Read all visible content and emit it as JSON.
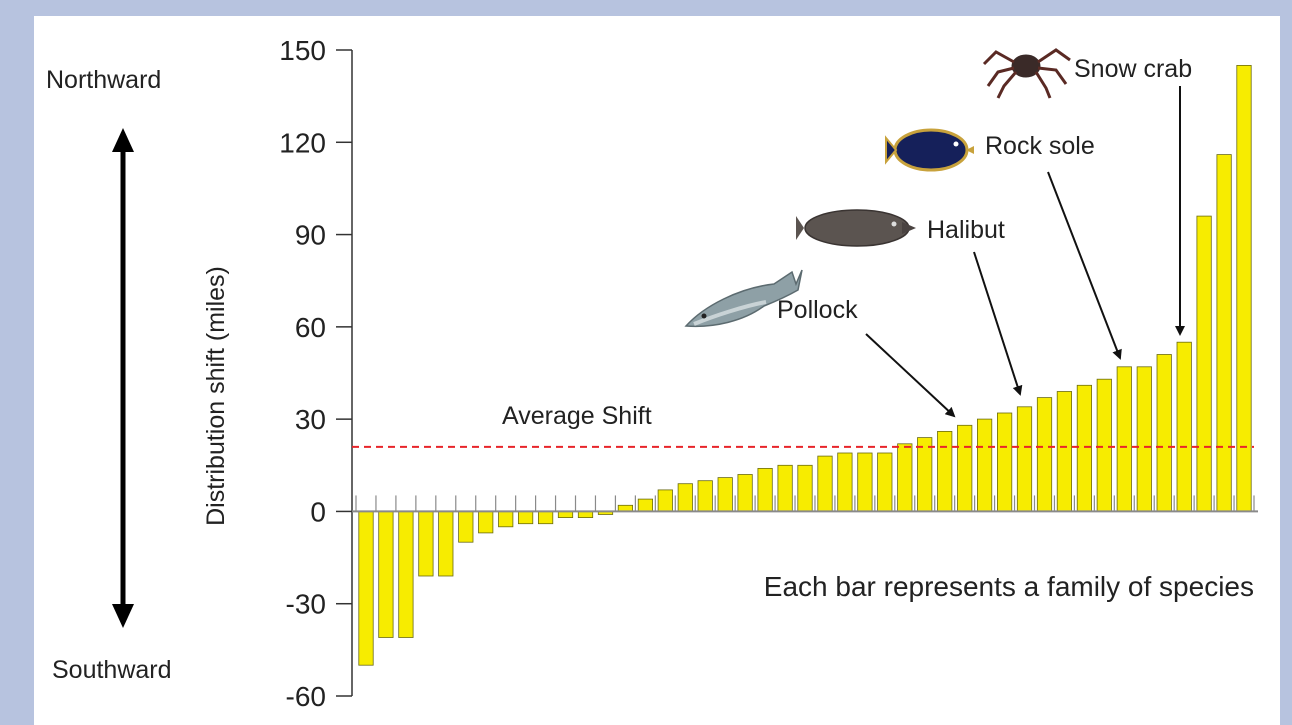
{
  "chart_data": {
    "type": "bar",
    "ylabel": "Distribution shift (miles)",
    "ylim": [
      -60,
      150
    ],
    "yticks": [
      150,
      120,
      90,
      60,
      30,
      0,
      -30,
      -60
    ],
    "values": [
      -50,
      -41,
      -41,
      -21,
      -21,
      -10,
      -7,
      -5,
      -4,
      -4,
      -2,
      -2,
      -1,
      2,
      4,
      7,
      9,
      10,
      11,
      12,
      14,
      15,
      15,
      18,
      19,
      19,
      19,
      22,
      24,
      26,
      28,
      30,
      32,
      34,
      37,
      39,
      41,
      43,
      47,
      47,
      51,
      55,
      96,
      116,
      145
    ],
    "bar_color": "#f7ec00",
    "average_line": {
      "value": 21,
      "label": "Average Shift",
      "color": "#e8242a"
    },
    "direction_labels": {
      "top": "Northward",
      "bottom": "Southward"
    },
    "note": "Each bar represents a family of species",
    "annotations": [
      {
        "label": "Pollock",
        "bar_index": 30,
        "icon": "pollock-fish-icon"
      },
      {
        "label": "Halibut",
        "bar_index": 33,
        "icon": "halibut-fish-icon"
      },
      {
        "label": "Rock sole",
        "bar_index": 38,
        "icon": "rock-sole-fish-icon"
      },
      {
        "label": "Snow crab",
        "bar_index": 41,
        "icon": "snow-crab-icon"
      }
    ]
  }
}
